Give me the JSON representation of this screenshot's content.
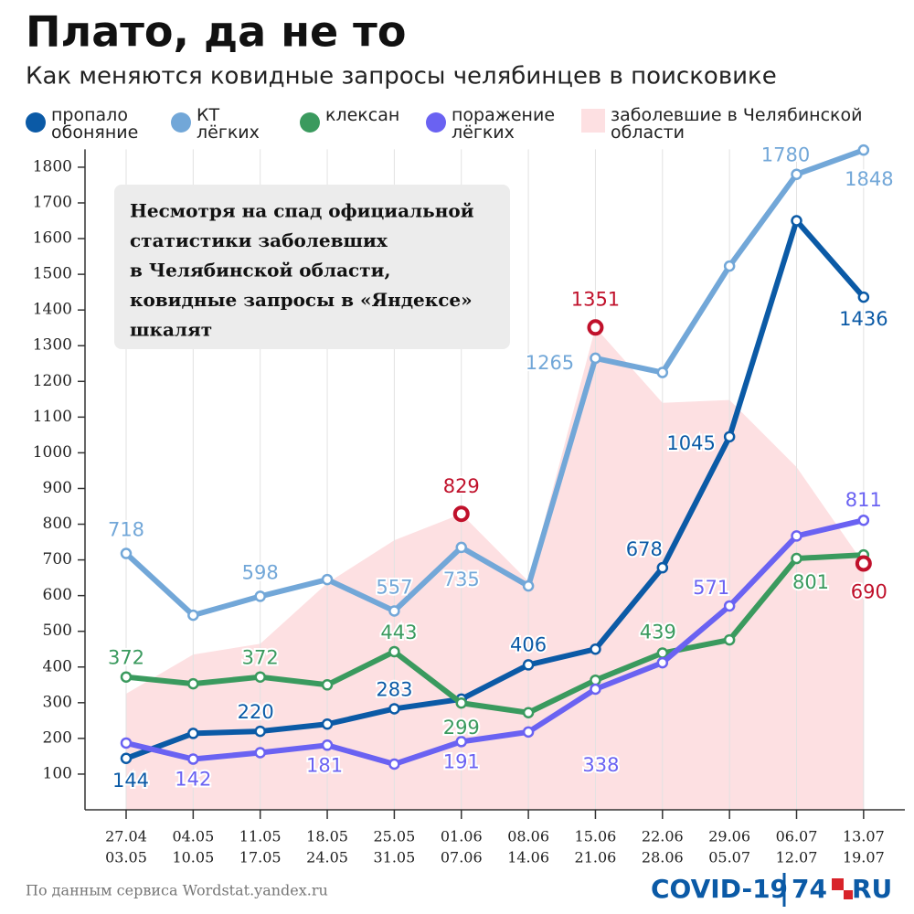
{
  "chart_data": {
    "type": "line",
    "title": "Плато, да не то",
    "subtitle": "Как меняются ковидные запросы челябинцев в поисковике",
    "categories": [
      [
        "27.04",
        "03.05"
      ],
      [
        "04.05",
        "10.05"
      ],
      [
        "11.05",
        "17.05"
      ],
      [
        "18.05",
        "24.05"
      ],
      [
        "25.05",
        "31.05"
      ],
      [
        "01.06",
        "07.06"
      ],
      [
        "08.06",
        "14.06"
      ],
      [
        "15.06",
        "21.06"
      ],
      [
        "22.06",
        "28.06"
      ],
      [
        "29.06",
        "05.07"
      ],
      [
        "06.07",
        "12.07"
      ],
      [
        "13.07",
        "19.07"
      ]
    ],
    "series": [
      {
        "name": "пропало обоняние",
        "color": "#0b5aa6",
        "values": [
          144,
          214,
          220,
          240,
          283,
          310,
          406,
          450,
          678,
          1045,
          1650,
          1436
        ]
      },
      {
        "name": "КТ лёгких",
        "color": "#72a7d8",
        "values": [
          718,
          545,
          598,
          645,
          557,
          735,
          627,
          1265,
          1225,
          1523,
          1780,
          1848
        ]
      },
      {
        "name": "клексан",
        "color": "#3a9a5e",
        "values": [
          372,
          353,
          372,
          350,
          443,
          299,
          272,
          363,
          439,
          476,
          704,
          714
        ]
      },
      {
        "name": "поражение лёгких",
        "color": "#6a62f2",
        "values": [
          187,
          142,
          160,
          181,
          128,
          191,
          218,
          338,
          412,
          571,
          767,
          811
        ]
      }
    ],
    "cases": {
      "name": "заболевшие в Челябинской области",
      "color": "#fde0e2",
      "marker_color": "#c0112b",
      "values": [
        325,
        435,
        465,
        635,
        755,
        829,
        640,
        1351,
        1140,
        1148,
        960,
        690
      ]
    },
    "ylim": [
      0,
      1850
    ],
    "yticks": [
      100,
      200,
      300,
      400,
      500,
      600,
      700,
      800,
      900,
      1000,
      1100,
      1200,
      1300,
      1400,
      1500,
      1600,
      1700,
      1800
    ],
    "grid": true,
    "note_lines": [
      "Несмотря на спад официальной",
      "статистики заболевших",
      "в Челябинской области,",
      "ковидные запросы в «Яндексе»",
      "шкалят"
    ],
    "annotations": [
      "801"
    ],
    "source": "По данным сервиса Wordstat.yandex.ru",
    "logo": [
      "COVID-19",
      "74",
      "RU"
    ]
  }
}
